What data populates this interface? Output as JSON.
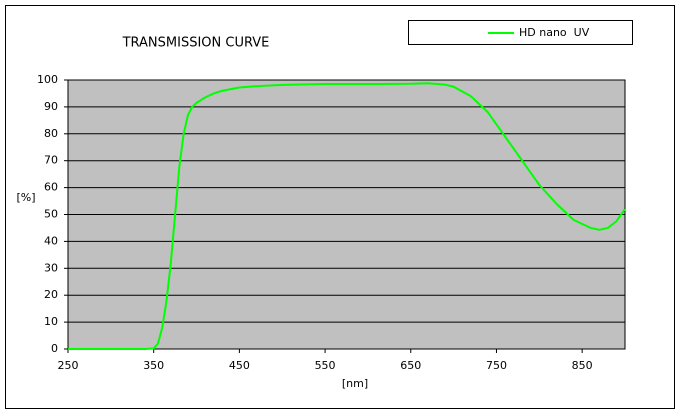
{
  "chart_data": {
    "type": "line",
    "title": "TRANSMISSION CURVE",
    "x_label": "[nm]",
    "y_label": "[%]",
    "x": [
      250,
      340,
      350,
      355,
      360,
      365,
      370,
      375,
      380,
      385,
      390,
      395,
      400,
      410,
      420,
      430,
      450,
      470,
      500,
      550,
      600,
      650,
      670,
      690,
      700,
      720,
      740,
      760,
      780,
      800,
      820,
      840,
      860,
      870,
      880,
      890,
      900
    ],
    "series": [
      {
        "name": "HD nano  UV",
        "color": "#00ff00",
        "values": [
          0,
          0,
          0.2,
          2,
          8,
          18,
          32,
          50,
          68,
          80,
          87,
          90,
          91.5,
          93.5,
          95,
          96,
          97.2,
          97.7,
          98.2,
          98.5,
          98.5,
          98.6,
          98.8,
          98.3,
          97.5,
          94,
          88,
          79,
          70,
          61,
          54,
          48,
          45,
          44.3,
          45,
          47.5,
          52
        ]
      }
    ],
    "xlim": [
      250,
      900
    ],
    "ylim": [
      0,
      100
    ],
    "xticks": [
      250,
      350,
      450,
      550,
      650,
      750,
      850
    ],
    "yticks": [
      0,
      10,
      20,
      30,
      40,
      50,
      60,
      70,
      80,
      90,
      100
    ],
    "grid": true,
    "plot_background": "#c0c0c0",
    "legend": "top-right"
  }
}
